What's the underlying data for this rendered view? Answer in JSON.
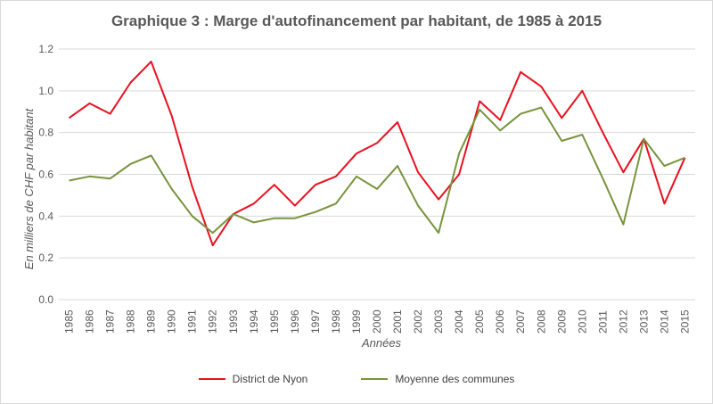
{
  "chart_data": {
    "type": "line",
    "title": "Graphique 3 : Marge d'autofinancement par habitant, de 1985 à 2015",
    "xlabel": "Années",
    "ylabel": "En milliers de CHF par habitant",
    "ylim": [
      0,
      1.2
    ],
    "yticks": [
      "0.0",
      "0.2",
      "0.4",
      "0.6",
      "0.8",
      "1.0",
      "1.2"
    ],
    "grid": true,
    "legend_position": "bottom",
    "categories": [
      "1985",
      "1986",
      "1987",
      "1988",
      "1989",
      "1990",
      "1991",
      "1992",
      "1993",
      "1994",
      "1995",
      "1996",
      "1997",
      "1998",
      "1999",
      "2000",
      "2001",
      "2002",
      "2003",
      "2004",
      "2005",
      "2006",
      "2007",
      "2008",
      "2009",
      "2010",
      "2011",
      "2012",
      "2013",
      "2014",
      "2015"
    ],
    "series": [
      {
        "name": "District de Nyon",
        "color": "#e8101e",
        "values": [
          0.87,
          0.94,
          0.89,
          1.04,
          1.14,
          0.88,
          0.54,
          0.26,
          0.41,
          0.46,
          0.55,
          0.45,
          0.55,
          0.59,
          0.7,
          0.75,
          0.85,
          0.61,
          0.48,
          0.6,
          0.95,
          0.86,
          1.09,
          1.02,
          0.87,
          1.0,
          0.8,
          0.61,
          0.77,
          0.46,
          0.68
        ]
      },
      {
        "name": "Moyenne des communes",
        "color": "#77933c",
        "values": [
          0.57,
          0.59,
          0.58,
          0.65,
          0.69,
          0.53,
          0.4,
          0.32,
          0.41,
          0.37,
          0.39,
          0.39,
          0.42,
          0.46,
          0.59,
          0.53,
          0.64,
          0.45,
          0.32,
          0.7,
          0.91,
          0.81,
          0.89,
          0.92,
          0.76,
          0.79,
          0.58,
          0.36,
          0.77,
          0.64,
          0.68
        ]
      }
    ]
  },
  "colors": {
    "grid": "#d9d9d9",
    "axis_text": "#595959"
  }
}
